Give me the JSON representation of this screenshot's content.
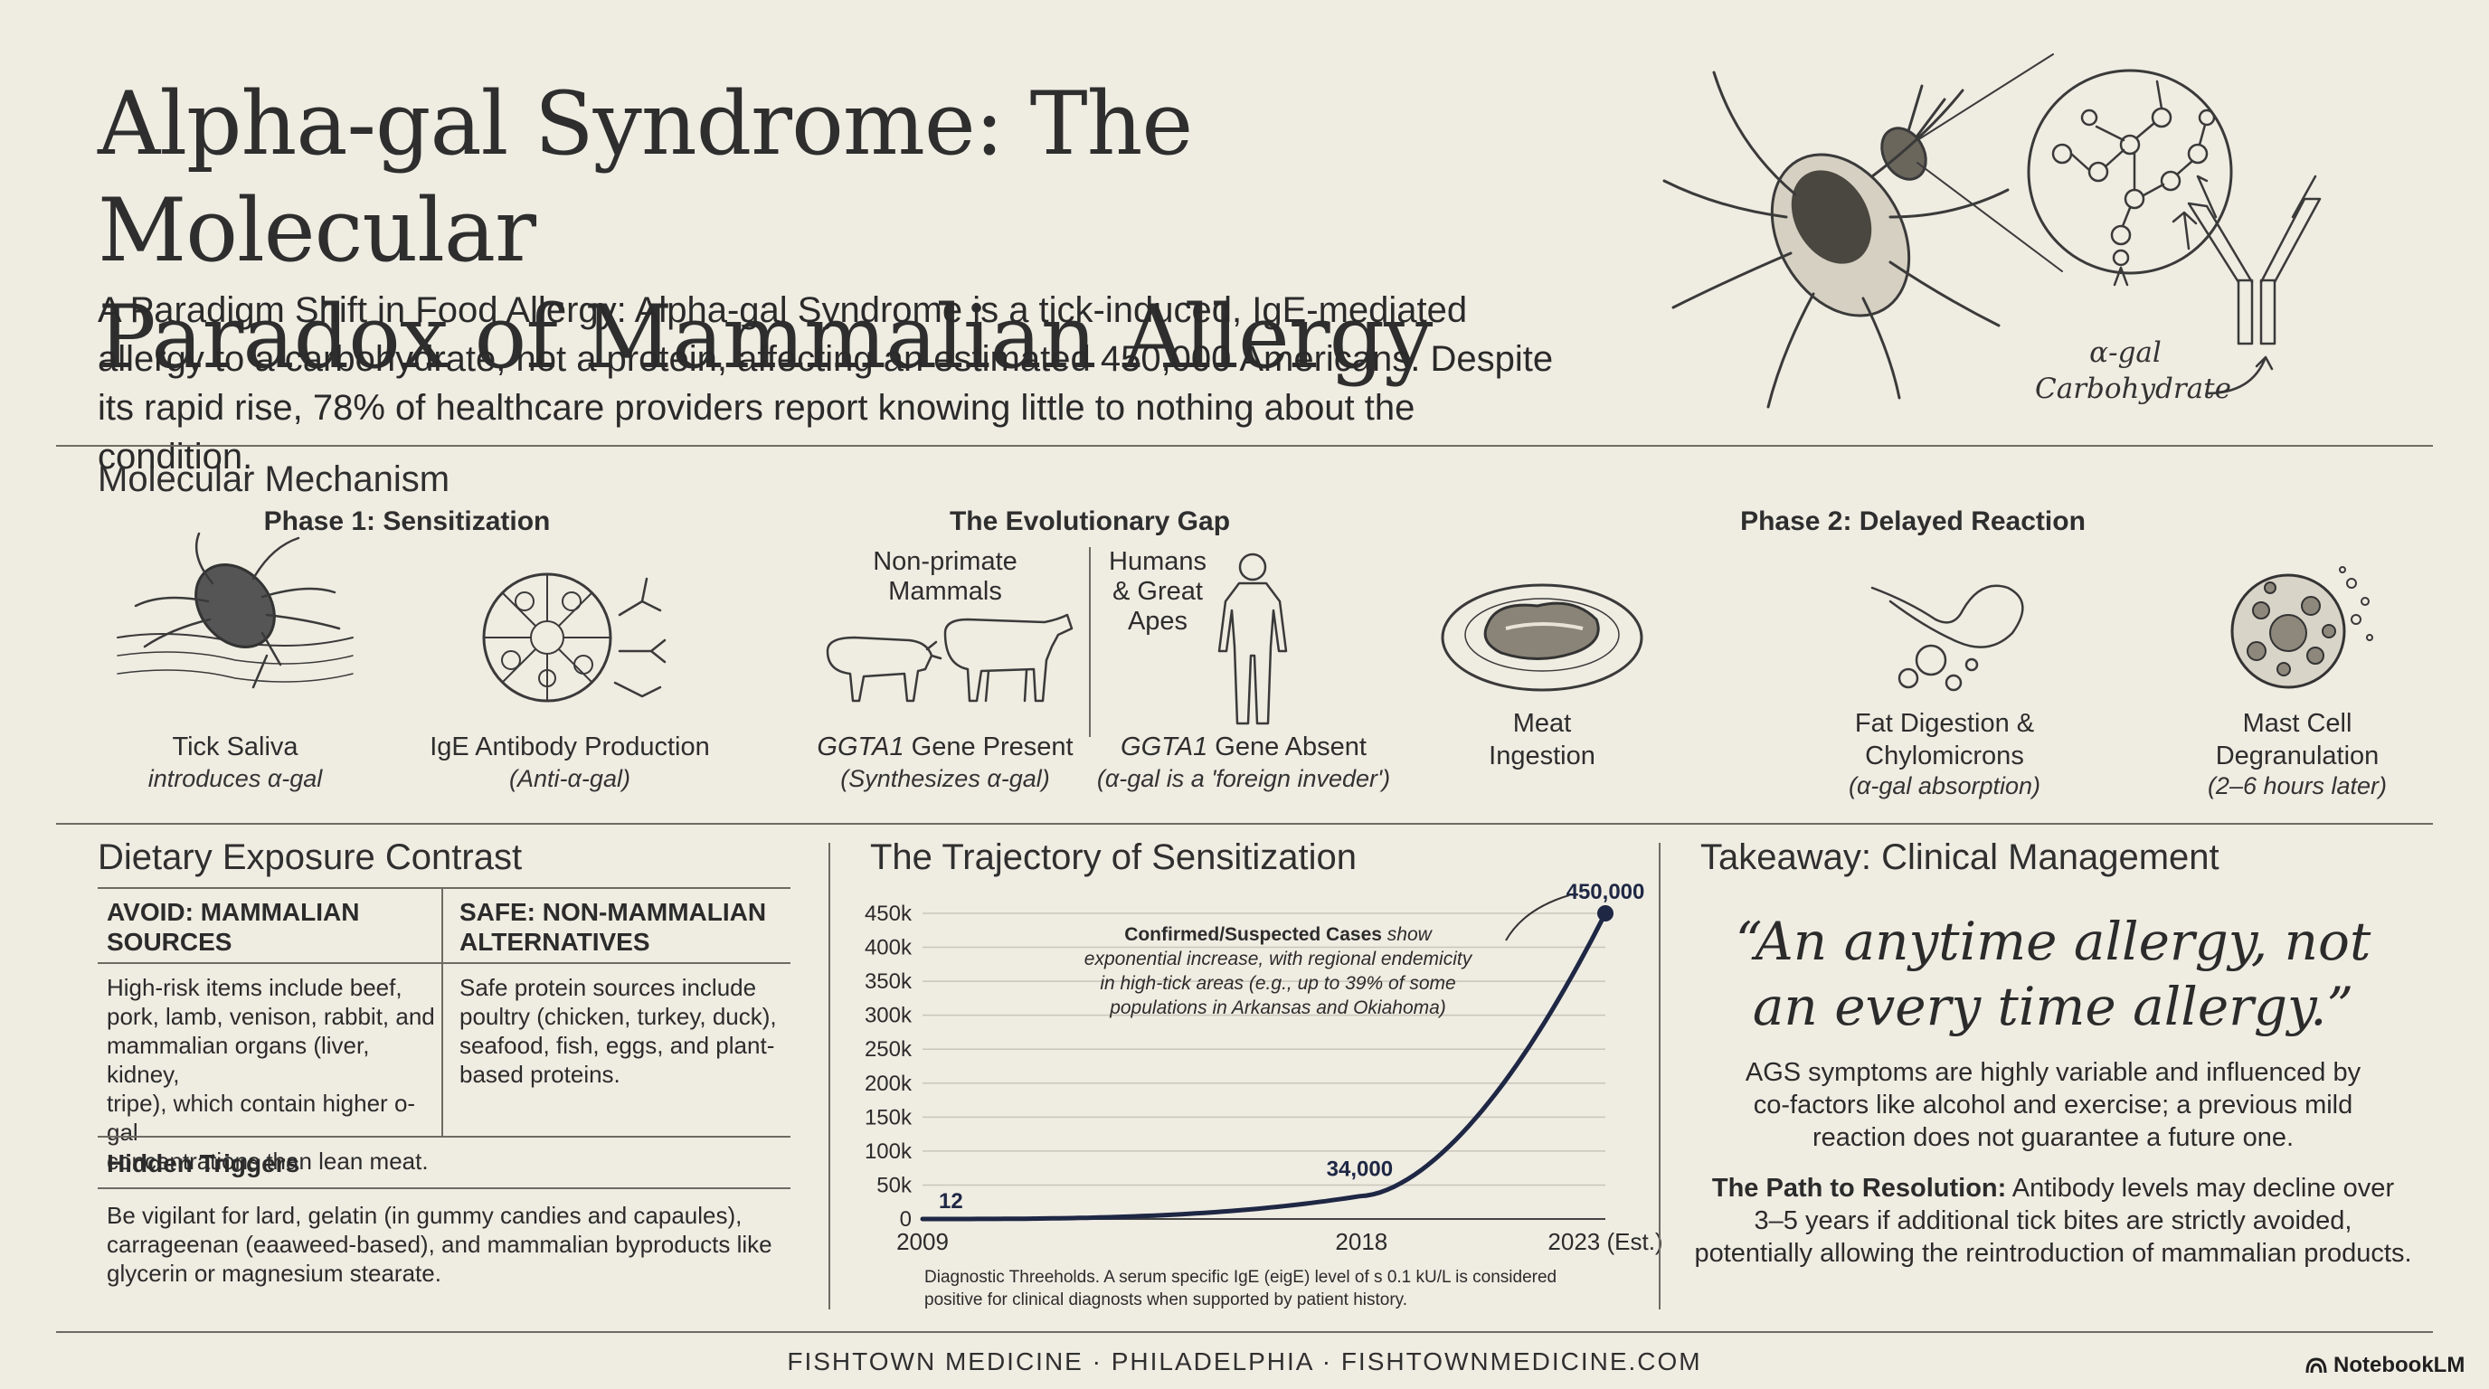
{
  "header": {
    "title_line1": "Alpha-gal Syndrome: The Molecular",
    "title_line2": "Paradox of Mammalian Allergy",
    "intro": "A Paradigm Shift in Food Allergy: Alpha-gal Syndrome is a tick-induced, IgE-mediated allergy to a carbohydrate, not a protein, affecting an estimated 450,000 Americans. Despite its rapid rise, 78% of healthcare providers report knowing little to nothing about the condition.",
    "illustration_label_1": "α-gal",
    "illustration_label_2": "Carbohydrate"
  },
  "mechanism": {
    "heading": "Molecular Mechanism",
    "phase1_heading": "Phase 1: Sensitization",
    "gap_heading": "The Evolutionary Gap",
    "phase2_heading": "Phase 2: Delayed Reaction",
    "tick_title": "Tick Saliva",
    "tick_sub": "introduces α-gal",
    "ige_title": "IgE Antibody Production",
    "ige_sub": "(Anti-α-gal)",
    "nonprimate_l1": "Non-primate",
    "nonprimate_l2": "Mammals",
    "humans_l1": "Humans",
    "humans_l2": "& Great",
    "humans_l3": "Apes",
    "ggta_present_gene": "GGTA1",
    "ggta_present_rest": " Gene Present",
    "ggta_present_sub": "(Synthesizes α-gal)",
    "ggta_absent_gene": "GGTA1",
    "ggta_absent_rest": " Gene Absent",
    "ggta_absent_sub": "(α-gal is a 'foreign inveder')",
    "meat_l1": "Meat",
    "meat_l2": "Ingestion",
    "fat_l1": "Fat Digestion &",
    "fat_l2": "Chylomicrons",
    "fat_sub": "(α-gal absorption)",
    "mast_l1": "Mast Cell",
    "mast_l2": "Degranulation",
    "mast_sub": "(2–6 hours later)"
  },
  "diet": {
    "heading": "Dietary Exposure Contrast",
    "avoid_h1": "AVOID: MAMMALIAN",
    "avoid_h2": "SOURCES",
    "safe_h1": "SAFE: NON-MAMMALIAN",
    "safe_h2": "ALTERNATIVES",
    "avoid_lines": [
      "High-risk items include beef,",
      "pork, lamb, venison, rabbit, and",
      "mammalian organs (liver, kidney,",
      "tripe), which contain higher o-gal",
      "concentrations than lean meat."
    ],
    "safe_lines": [
      "Safe protein sources include",
      "poultry (chicken, turkey, duck),",
      "seafood, fish, eggs, and plant-",
      "based proteins."
    ],
    "hidden_heading": "Hidden Triggers",
    "hidden_lines": [
      "Be vigilant for lard, gelatin (in gummy candies and capaules),",
      "carrageenan (eaaweed-based), and mammalian byproducts like",
      "glycerin or magnesium stearate."
    ]
  },
  "chart_data": {
    "type": "line",
    "title": "The Trajectory of Sensitization",
    "xlabel": "",
    "ylabel": "",
    "x_tick_labels": [
      "2009",
      "2018",
      "2023 (Est.)"
    ],
    "y_tick_labels": [
      "0",
      "50k",
      "100k",
      "150k",
      "200k",
      "250k",
      "300k",
      "350k",
      "400k",
      "450k"
    ],
    "ylim": [
      0,
      450000
    ],
    "xlim": [
      2009,
      2023
    ],
    "series": [
      {
        "name": "Confirmed/Suspected Cases",
        "x": [
          2009,
          2018,
          2023
        ],
        "y": [
          12,
          34000,
          450000
        ]
      }
    ],
    "data_labels": [
      "12",
      "34,000",
      "450,000"
    ],
    "annotation_bold": "Confirmed/Suspected Cases",
    "annotation_rest_1": " show",
    "annotation_lines": [
      "exponential increase, with regional endemicity",
      "in high-tick areas (e.g., up to 39% of some",
      "populations in Arkansas and Okiahoma)"
    ],
    "footnote_lines": [
      "Diagnostic Threeholds. A serum specific IgE (eigE) level of s 0.1 kU/L is considered",
      "positive for clinical diagnosts when supported by patient history."
    ]
  },
  "takeaway": {
    "heading": "Takeaway: Clinical Management",
    "quote_l1": "“An anytime allergy, not",
    "quote_l2": "an every time allergy.”",
    "body_lines": [
      "AGS symptoms are highly variable and influenced by",
      "co-factors like alcohol and exercise; a previous mild",
      "reaction does not guarantee a future one."
    ],
    "path_bold": "The Path to Resolution:",
    "path_first_rest": " Antibody levels may decline over",
    "path_lines": [
      "3–5 years if additional tick bites are strictly avoided,",
      "potentially allowing the reintroduction of mammalian products."
    ]
  },
  "footer": {
    "text": "FISHTOWN MEDICINE · PHILADELPHIA · FISHTOWNMEDICINE.COM",
    "brand": "NotebookLM"
  },
  "colors": {
    "background": "#efece2",
    "ink": "#2b2b2b",
    "curve": "#1e2744"
  }
}
